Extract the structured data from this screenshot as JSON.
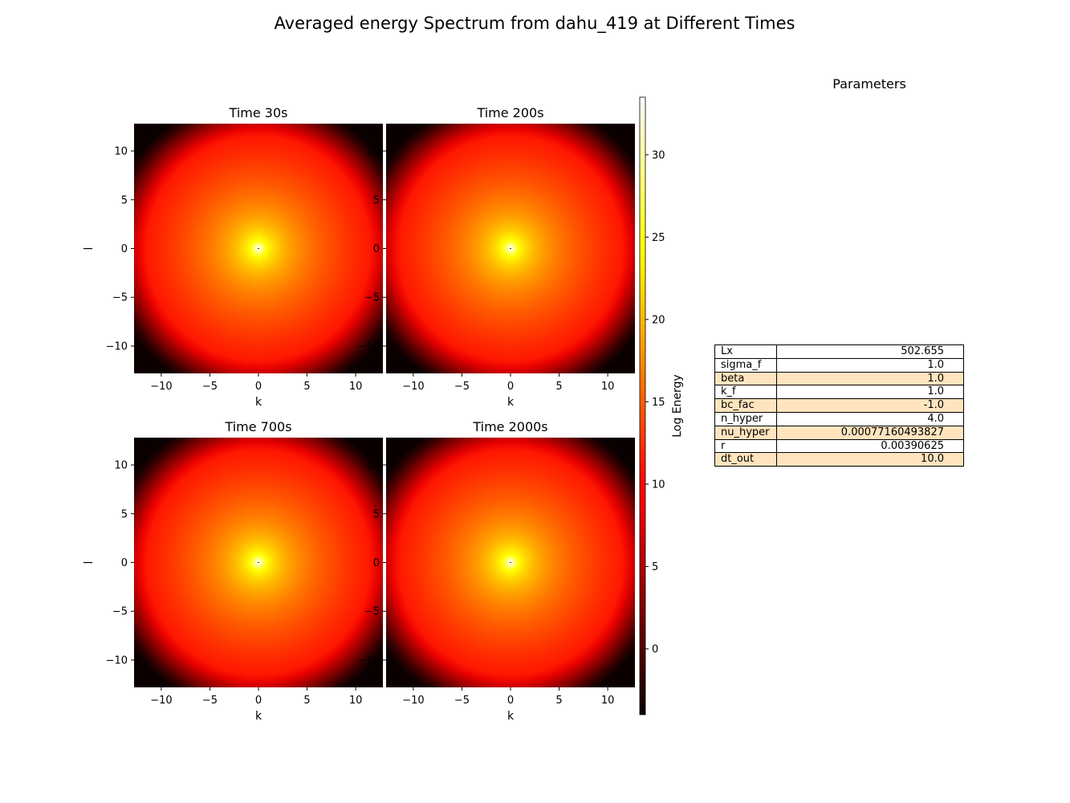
{
  "title": "Averaged energy Spectrum from dahu_419 at Different Times",
  "chart_data": {
    "type": "heatmap",
    "colormap": "hot",
    "panels": [
      {
        "title": "Time 30s",
        "xlabel": "k",
        "ylabel": "l"
      },
      {
        "title": "Time 200s",
        "xlabel": "k",
        "ylabel": ""
      },
      {
        "title": "Time 700s",
        "xlabel": "k",
        "ylabel": "l"
      },
      {
        "title": "Time 2000s",
        "xlabel": "k",
        "ylabel": ""
      }
    ],
    "xlim": [
      -12.8,
      12.8
    ],
    "ylim": [
      -12.8,
      12.8
    ],
    "xticks": [
      -10,
      -5,
      0,
      5,
      10
    ],
    "yticks": [
      -10,
      -5,
      0,
      5,
      10
    ],
    "xtick_labels": [
      "−10",
      "−5",
      "0",
      "5",
      "10"
    ],
    "ytick_labels": [
      "−10",
      "−5",
      "0",
      "5",
      "10"
    ],
    "energy_model": {
      "center_value": 33.5,
      "edge_value": -4
    },
    "colorbar": {
      "label": "Log Energy",
      "range": [
        -4,
        33.5
      ],
      "ticks": [
        0,
        5,
        10,
        15,
        20,
        25,
        30
      ],
      "tick_labels": [
        "0",
        "5",
        "10",
        "15",
        "20",
        "25",
        "30"
      ]
    }
  },
  "parameters": {
    "title": "Parameters",
    "rows": [
      {
        "name": "Lx",
        "value": "502.655"
      },
      {
        "name": "sigma_f",
        "value": "1.0"
      },
      {
        "name": "beta",
        "value": "1.0"
      },
      {
        "name": "k_f",
        "value": "1.0"
      },
      {
        "name": "bc_fac",
        "value": "-1.0"
      },
      {
        "name": "n_hyper",
        "value": "4.0"
      },
      {
        "name": "nu_hyper",
        "value": "0.00077160493827"
      },
      {
        "name": "r",
        "value": "0.00390625"
      },
      {
        "name": "dt_out",
        "value": "10.0"
      }
    ]
  }
}
